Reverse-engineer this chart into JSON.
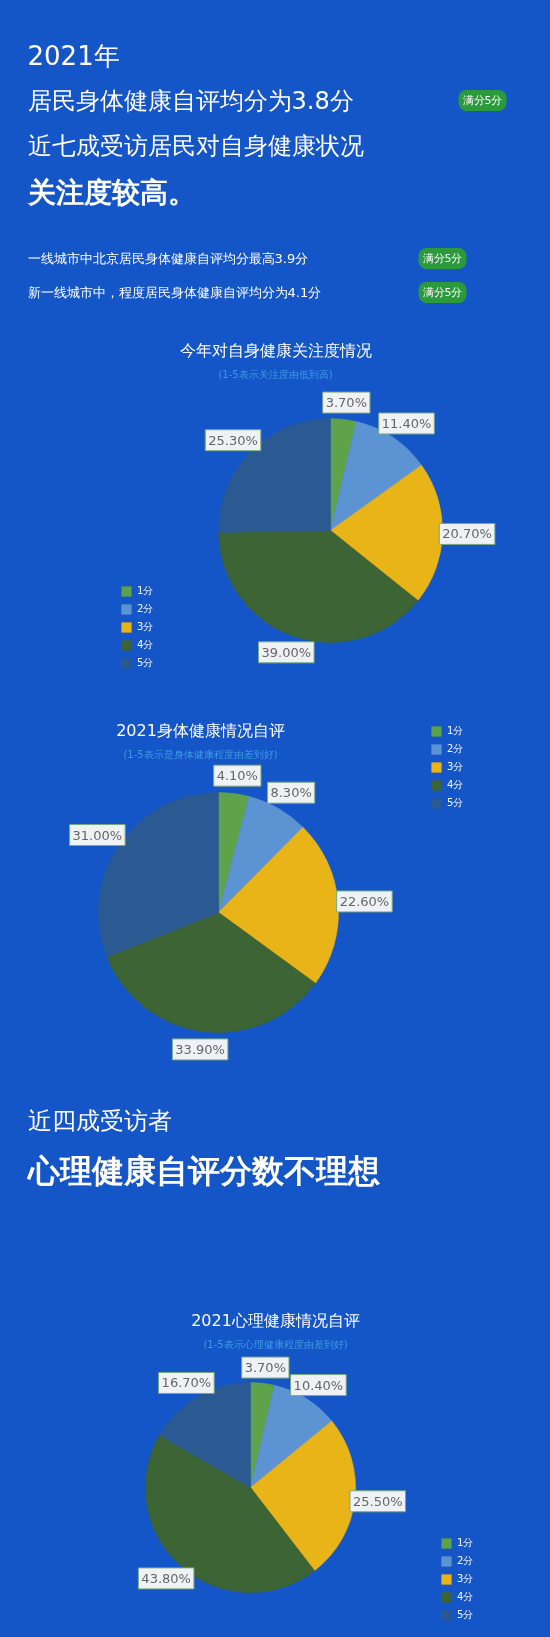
{
  "chart_data": [
    {
      "type": "other",
      "title": "2021年",
      "annotations": [
        "居民身体健康自评均分为3.8分",
        "满分5分",
        "近七成受访居民对自身健康状况",
        "关注度较高。",
        "一线城市中北京居民身体健康自评均分最高3.9分",
        "满分5分",
        "新一线城市中，程度居民身体健康自评均分为4.1分",
        "满分5分"
      ]
    },
    {
      "type": "pie",
      "title": "今年对自身健康关注度情况",
      "subtitle": "(1-5表示关注度由低到高)",
      "categories": [
        "1分",
        "2分",
        "3分",
        "4分",
        "5分"
      ],
      "values": [
        3.7,
        11.4,
        20.7,
        39.0,
        25.3
      ],
      "value_labels": [
        "3.70%",
        "11.40%",
        "20.70%",
        "39.00%",
        "25.30%"
      ],
      "colors": [
        "#5ea24a",
        "#5b93d3",
        "#e8b418",
        "#3c6434",
        "#2b5a93"
      ],
      "legend": "bottom left"
    },
    {
      "type": "pie",
      "title": "2021身体健康情况自评",
      "subtitle": "(1-5表示是身体健康程度由差到好)",
      "categories": [
        "1分",
        "2分",
        "3分",
        "4分",
        "5分"
      ],
      "values": [
        4.1,
        8.3,
        22.6,
        33.9,
        31.0
      ],
      "value_labels": [
        "4.10%",
        "8.30%",
        "22.60%",
        "33.90%",
        "31.00%"
      ],
      "colors": [
        "#5ea24a",
        "#5b93d3",
        "#e8b418",
        "#3c6434",
        "#2b5a93"
      ],
      "legend": "top right"
    },
    {
      "type": "other",
      "annotations": [
        "近四成受访者",
        "心理健康自评分数不理想"
      ]
    },
    {
      "type": "pie",
      "title": "2021心理健康情况自评",
      "subtitle": "(1-5表示心理健康程度由差到好)",
      "categories": [
        "1分",
        "2分",
        "3分",
        "4分",
        "5分"
      ],
      "values": [
        3.7,
        10.4,
        25.5,
        43.8,
        16.7
      ],
      "value_labels": [
        "3.70%",
        "10.40%",
        "25.50%",
        "43.80%",
        "16.70%"
      ],
      "colors": [
        "#5ea24a",
        "#5b93d3",
        "#e8b418",
        "#3c6434",
        "#2b5a93"
      ],
      "legend": "bottom right"
    }
  ]
}
